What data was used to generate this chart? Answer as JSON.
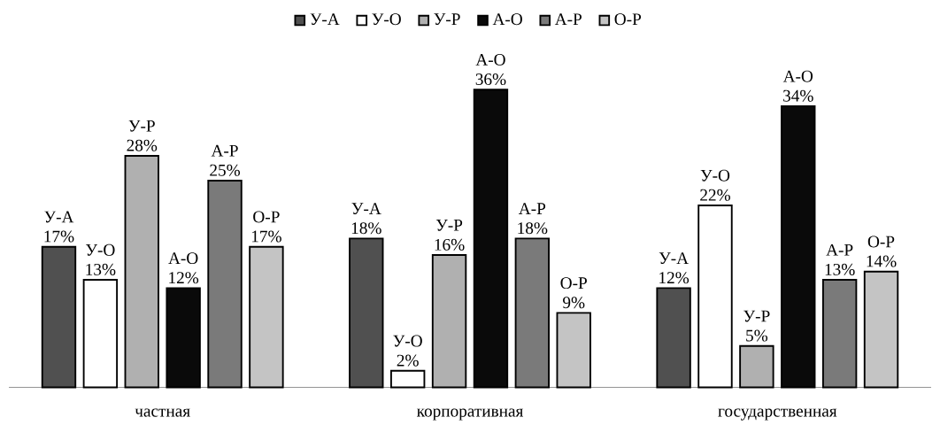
{
  "chart_data": {
    "type": "bar",
    "categories": [
      "частная",
      "корпоративная",
      "государственная"
    ],
    "legend": "top",
    "series": [
      {
        "name": "У-А",
        "color": "#505050",
        "values": [
          17,
          18,
          12
        ],
        "value_labels": [
          "17%",
          "18%",
          "12%"
        ]
      },
      {
        "name": "У-О",
        "color": "#ffffff",
        "values": [
          13,
          2,
          22
        ],
        "value_labels": [
          "13%",
          "2%",
          "22%"
        ]
      },
      {
        "name": "У-Р",
        "color": "#b0b0b0",
        "values": [
          28,
          16,
          5
        ],
        "value_labels": [
          "28%",
          "16%",
          "5%"
        ]
      },
      {
        "name": "А-О",
        "color": "#0a0a0a",
        "values": [
          12,
          36,
          34
        ],
        "value_labels": [
          "12%",
          "36%",
          "34%"
        ]
      },
      {
        "name": "А-Р",
        "color": "#7a7a7a",
        "values": [
          25,
          18,
          13
        ],
        "value_labels": [
          "25%",
          "18%",
          "13%"
        ]
      },
      {
        "name": "О-Р",
        "color": "#c4c4c4",
        "values": [
          17,
          9,
          14
        ],
        "value_labels": [
          "17%",
          "9%",
          "14%"
        ]
      }
    ]
  }
}
